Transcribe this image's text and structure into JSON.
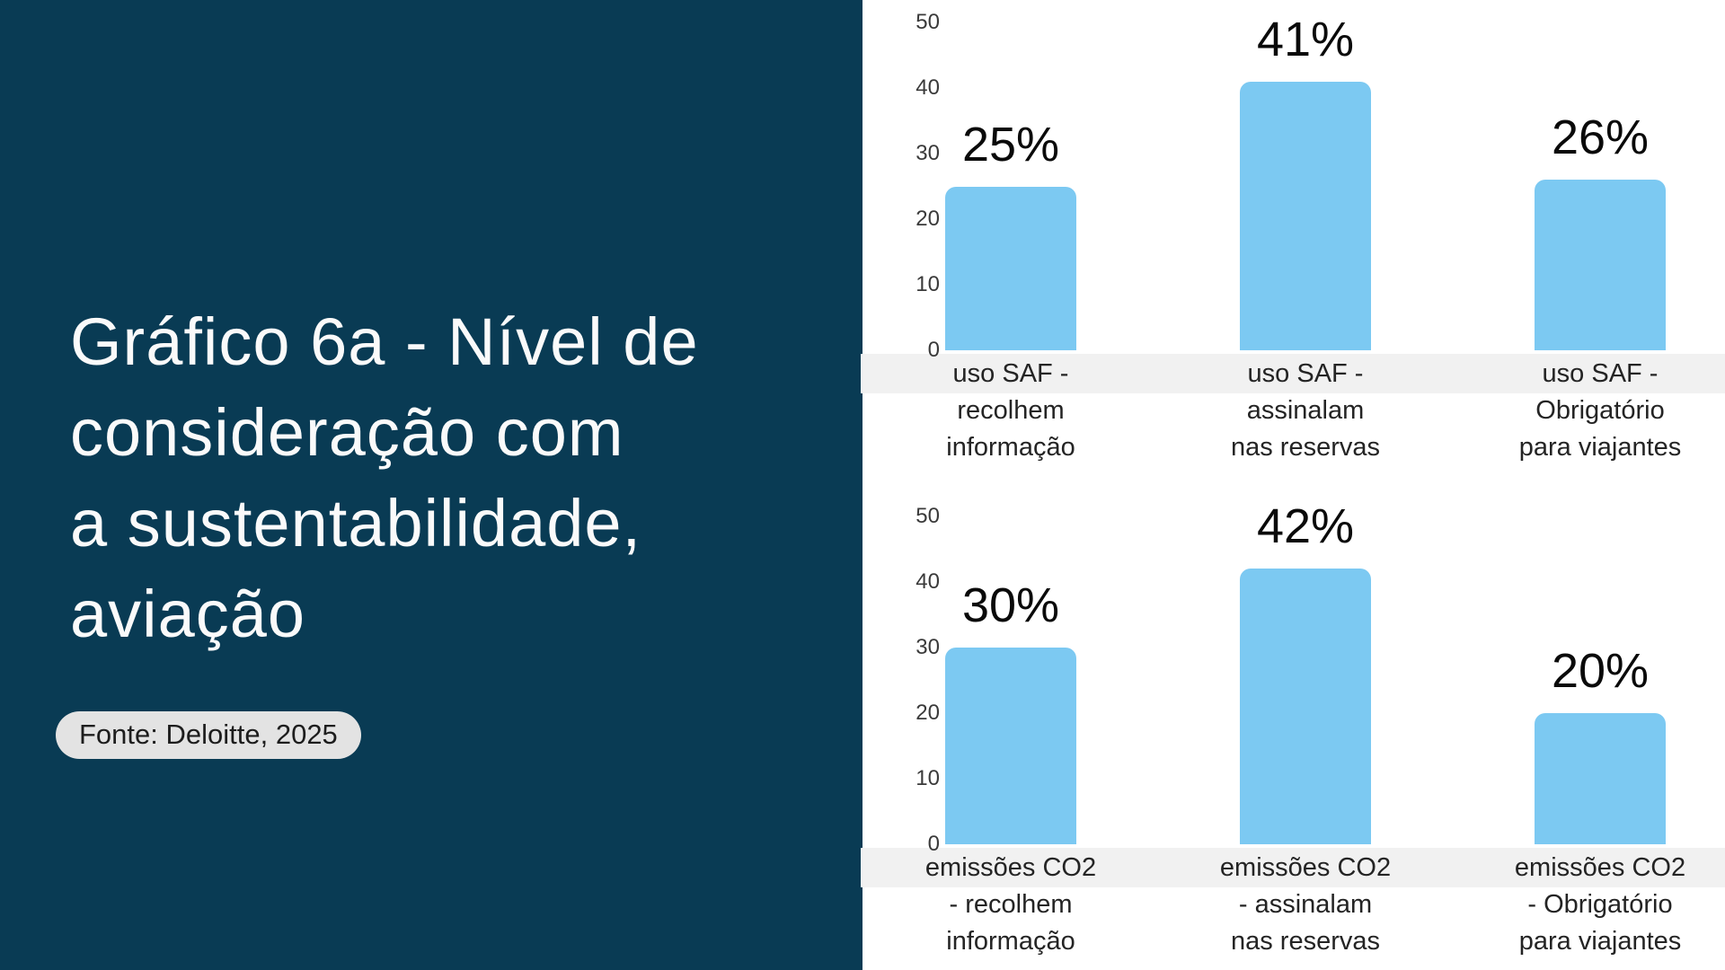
{
  "slide": {
    "title_lines": [
      "Gráfico 6a - Nível de",
      "consideração com",
      "a sustentabilidade,",
      "aviação"
    ],
    "source_badge": "Fonte: Deloitte, 2025"
  },
  "colors": {
    "panel_background": "#093b54",
    "bar_fill": "#7cc9f2",
    "axis_band": "#f1f1f1",
    "badge_background": "#e3e3e3",
    "title_text": "#fafafa"
  },
  "chart_data": [
    {
      "type": "bar",
      "title": "uso SAF",
      "categories": [
        "uso SAF -\nrecolhem\ninformação",
        "uso SAF -\nassinalam\nnas reservas",
        "uso SAF -\nObrigatório\npara viajantes"
      ],
      "values": [
        25,
        41,
        26
      ],
      "value_labels": [
        "25%",
        "41%",
        "26%"
      ],
      "yticks": [
        50,
        40,
        30,
        20,
        10,
        0
      ],
      "ylim": [
        0,
        50
      ],
      "grid": false,
      "legend": false
    },
    {
      "type": "bar",
      "title": "emissões CO2",
      "categories": [
        "emissões CO2\n- recolhem\ninformação",
        "emissões CO2\n- assinalam\nnas reservas",
        "emissões CO2\n- Obrigatório\npara viajantes"
      ],
      "values": [
        30,
        42,
        20
      ],
      "value_labels": [
        "30%",
        "42%",
        "20%"
      ],
      "yticks": [
        50,
        40,
        30,
        20,
        10,
        0
      ],
      "ylim": [
        0,
        50
      ],
      "grid": false,
      "legend": false
    }
  ]
}
